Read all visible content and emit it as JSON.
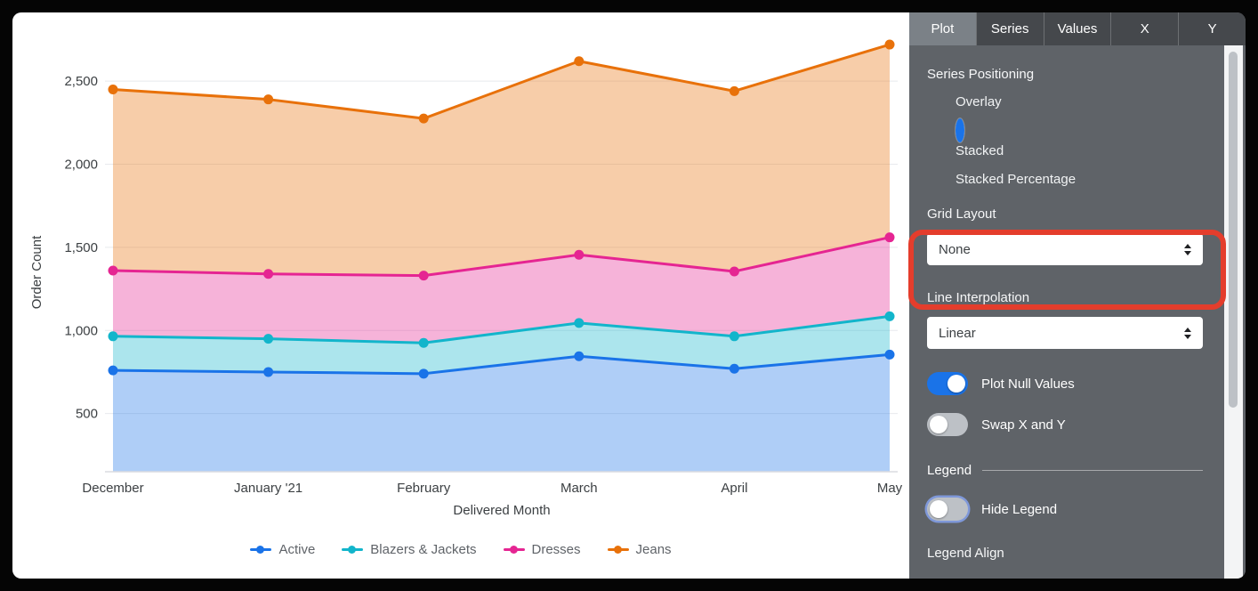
{
  "panel": {
    "tabs": [
      {
        "label": "Plot",
        "active": true
      },
      {
        "label": "Series",
        "active": false
      },
      {
        "label": "Values",
        "active": false
      },
      {
        "label": "X",
        "active": false
      },
      {
        "label": "Y",
        "active": false
      }
    ],
    "series_positioning": {
      "label": "Series Positioning",
      "options": [
        {
          "label": "Overlay",
          "selected": false
        },
        {
          "label": "Stacked",
          "selected": true
        },
        {
          "label": "Stacked Percentage",
          "selected": false
        }
      ]
    },
    "grid_layout": {
      "label": "Grid Layout",
      "value": "None"
    },
    "line_interpolation": {
      "label": "Line Interpolation",
      "value": "Linear"
    },
    "plot_null_values": {
      "label": "Plot Null Values",
      "on": true
    },
    "swap_x_y": {
      "label": "Swap X and Y",
      "on": false
    },
    "legend_section": {
      "label": "Legend"
    },
    "hide_legend": {
      "label": "Hide Legend",
      "on": false,
      "focused": true
    },
    "legend_align": {
      "label": "Legend Align"
    }
  },
  "annotation": {
    "shape": "red-rounded-rectangle",
    "highlights": "Grid Layout dropdown",
    "color": "#E43D2C"
  },
  "chart_data": {
    "type": "area",
    "stacked": true,
    "title": "",
    "xlabel": "Delivered Month",
    "ylabel": "Order Count",
    "categories": [
      "December",
      "January '21",
      "February",
      "March",
      "April",
      "May"
    ],
    "series": [
      {
        "name": "Active",
        "color": "#1A73E8",
        "values": [
          760,
          750,
          740,
          845,
          770,
          855
        ]
      },
      {
        "name": "Blazers & Jackets",
        "color": "#12B5CB",
        "values": [
          205,
          200,
          185,
          200,
          195,
          230
        ]
      },
      {
        "name": "Dresses",
        "color": "#E52592",
        "values": [
          395,
          390,
          405,
          410,
          390,
          475
        ]
      },
      {
        "name": "Jeans",
        "color": "#E8710A",
        "values": [
          1090,
          1050,
          945,
          1165,
          1085,
          1160
        ]
      }
    ],
    "stacked_totals": {
      "Active": [
        760,
        750,
        740,
        845,
        770,
        855
      ],
      "Blazers & Jackets": [
        965,
        950,
        925,
        1045,
        965,
        1085
      ],
      "Dresses": [
        1360,
        1340,
        1330,
        1455,
        1355,
        1560
      ],
      "Jeans": [
        2450,
        2390,
        2275,
        2620,
        2440,
        2720
      ]
    },
    "yticks": [
      500,
      1000,
      1500,
      2000,
      2500
    ],
    "ytick_labels": [
      "500",
      "1,000",
      "1,500",
      "2,000",
      "2,500"
    ],
    "ylim": [
      150,
      2760
    ],
    "grid": true,
    "fill_opacity": 0.35,
    "legend_position": "bottom"
  }
}
